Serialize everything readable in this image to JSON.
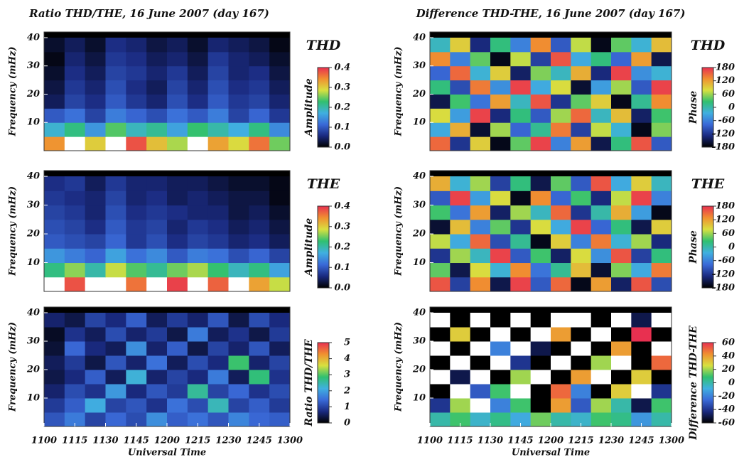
{
  "colormap": [
    "#000000",
    "#1a2a80",
    "#3a6ad8",
    "#40b0e0",
    "#30c070",
    "#d8e040",
    "#f09030",
    "#e83050"
  ],
  "chart_data": [
    {
      "type": "heatmap",
      "title": "Ratio THD/THE, 16 June 2007 (day 167)",
      "label": "THD",
      "colorbar_label": "Amplitude",
      "ylabel": "Frequency (mHz)",
      "xbins": [
        0,
        10,
        20,
        30,
        40,
        50,
        60,
        70,
        80,
        90,
        100,
        110,
        120
      ],
      "ybins": [
        0,
        5,
        10,
        15,
        20,
        25,
        30,
        35,
        40
      ],
      "xlim": [
        0,
        120
      ],
      "ylim": [
        0,
        42
      ],
      "yticks": [
        10,
        20,
        30,
        40
      ],
      "clim": [
        0,
        0.4
      ],
      "cticks": [
        {
          "value": 0,
          "label": "0.0"
        },
        0.1,
        0.2,
        0.3,
        0.4
      ],
      "z": [
        [
          0.34,
          0.41,
          0.3,
          0.42,
          0.38,
          0.31,
          0.27,
          0.43,
          0.33,
          0.29,
          0.36,
          0.25
        ],
        [
          0.18,
          0.22,
          0.15,
          0.24,
          0.19,
          0.21,
          0.16,
          0.23,
          0.2,
          0.17,
          0.22,
          0.14
        ],
        [
          0.1,
          0.12,
          0.08,
          0.13,
          0.11,
          0.09,
          0.12,
          0.1,
          0.13,
          0.08,
          0.11,
          0.07
        ],
        [
          0.04,
          0.08,
          0.06,
          0.1,
          0.07,
          0.05,
          0.09,
          0.06,
          0.1,
          0.07,
          0.08,
          0.05
        ],
        [
          0.03,
          0.07,
          0.05,
          0.09,
          0.06,
          0.04,
          0.08,
          0.05,
          0.09,
          0.06,
          0.07,
          0.04
        ],
        [
          0.02,
          0.06,
          0.04,
          0.08,
          0.07,
          0.05,
          0.07,
          0.04,
          0.08,
          0.05,
          0.06,
          0.03
        ],
        [
          0.01,
          0.05,
          0.03,
          0.07,
          0.06,
          0.04,
          0.05,
          0.03,
          0.07,
          0.05,
          0.04,
          0.02
        ],
        [
          0.02,
          0.04,
          0.02,
          0.06,
          0.05,
          0.03,
          0.04,
          0.02,
          0.05,
          0.04,
          0.03,
          0.01
        ]
      ]
    },
    {
      "type": "heatmap",
      "label": "THE",
      "colorbar_label": "Amplitude",
      "ylabel": "Frequency (mHz)",
      "xbins": [
        0,
        10,
        20,
        30,
        40,
        50,
        60,
        70,
        80,
        90,
        100,
        110,
        120
      ],
      "ybins": [
        0,
        5,
        10,
        15,
        20,
        25,
        30,
        35,
        40
      ],
      "xlim": [
        0,
        120
      ],
      "ylim": [
        0,
        42
      ],
      "yticks": [
        10,
        20,
        30,
        40
      ],
      "clim": [
        0,
        0.4
      ],
      "cticks": [
        {
          "value": 0,
          "label": "0.0"
        },
        0.1,
        0.2,
        0.3,
        0.4
      ],
      "z": [
        [
          0.45,
          0.38,
          0.44,
          0.41,
          0.36,
          0.43,
          0.39,
          0.46,
          0.37,
          0.42,
          0.33,
          0.28
        ],
        [
          0.22,
          0.26,
          0.2,
          0.28,
          0.24,
          0.21,
          0.25,
          0.27,
          0.23,
          0.19,
          0.22,
          0.16
        ],
        [
          0.15,
          0.13,
          0.11,
          0.16,
          0.12,
          0.14,
          0.1,
          0.13,
          0.12,
          0.09,
          0.11,
          0.08
        ],
        [
          0.1,
          0.09,
          0.08,
          0.11,
          0.07,
          0.09,
          0.06,
          0.08,
          0.07,
          0.05,
          0.06,
          0.04
        ],
        [
          0.09,
          0.08,
          0.06,
          0.1,
          0.07,
          0.08,
          0.05,
          0.07,
          0.06,
          0.04,
          0.05,
          0.03
        ],
        [
          0.08,
          0.07,
          0.05,
          0.09,
          0.06,
          0.07,
          0.06,
          0.05,
          0.05,
          0.03,
          0.04,
          0.02
        ],
        [
          0.07,
          0.06,
          0.05,
          0.08,
          0.05,
          0.06,
          0.04,
          0.05,
          0.04,
          0.03,
          0.03,
          0.01
        ],
        [
          0.06,
          0.07,
          0.04,
          0.07,
          0.05,
          0.05,
          0.04,
          0.04,
          0.03,
          0.02,
          0.02,
          0.01
        ]
      ]
    },
    {
      "type": "heatmap",
      "colorbar_label": "Ratio THD/THE",
      "ylabel": "Frequency (mHz)",
      "xlabel": "Universal Time",
      "xbins": [
        0,
        10,
        20,
        30,
        40,
        50,
        60,
        70,
        80,
        90,
        100,
        110,
        120
      ],
      "ybins": [
        0,
        5,
        10,
        15,
        20,
        25,
        30,
        35,
        40
      ],
      "xlim": [
        0,
        120
      ],
      "ylim": [
        0,
        42
      ],
      "yticks": [
        10,
        20,
        30,
        40
      ],
      "xticks": [
        {
          "value": 0,
          "label": "1100"
        },
        {
          "value": 15,
          "label": "1115"
        },
        {
          "value": 30,
          "label": "1130"
        },
        {
          "value": 45,
          "label": "1145"
        },
        {
          "value": 60,
          "label": "1200"
        },
        {
          "value": 75,
          "label": "1215"
        },
        {
          "value": 90,
          "label": "1230"
        },
        {
          "value": 105,
          "label": "1245"
        },
        {
          "value": 120,
          "label": "1300"
        }
      ],
      "clim": [
        0,
        5
      ],
      "cticks": [
        0,
        1,
        2,
        3,
        4,
        5
      ],
      "z": [
        [
          1.2,
          1.6,
          1.0,
          1.4,
          1.1,
          1.8,
          1.3,
          1.5,
          1.2,
          1.7,
          1.4,
          1.3
        ],
        [
          0.9,
          1.3,
          2.1,
          1.0,
          1.2,
          0.8,
          1.5,
          1.1,
          2.4,
          1.0,
          1.3,
          0.9
        ],
        [
          0.6,
          1.1,
          0.8,
          1.9,
          0.7,
          1.2,
          0.9,
          2.6,
          1.0,
          1.4,
          0.8,
          1.1
        ],
        [
          0.4,
          0.7,
          1.3,
          0.5,
          2.2,
          0.6,
          1.0,
          0.7,
          1.6,
          0.5,
          2.8,
          0.8
        ],
        [
          0.5,
          0.9,
          0.4,
          1.2,
          0.6,
          1.5,
          0.5,
          1.1,
          0.7,
          2.9,
          0.6,
          1.0
        ],
        [
          0.3,
          1.4,
          0.7,
          0.5,
          1.8,
          0.6,
          1.3,
          0.4,
          1.0,
          0.6,
          1.2,
          0.5
        ],
        [
          0.2,
          0.8,
          0.5,
          1.1,
          0.6,
          0.9,
          0.4,
          1.6,
          0.5,
          0.8,
          0.4,
          0.9
        ],
        [
          0.6,
          0.4,
          1.0,
          0.7,
          1.3,
          0.5,
          0.9,
          0.6,
          1.2,
          0.4,
          1.1,
          0.7
        ]
      ]
    },
    {
      "type": "heatmap",
      "title": "Difference THD-THE, 16 June 2007 (day 167)",
      "label": "THD",
      "colorbar_label": "Phase",
      "ylabel": "Frequency (mHz)",
      "xbins": [
        0,
        10,
        20,
        30,
        40,
        50,
        60,
        70,
        80,
        90,
        100,
        110,
        120
      ],
      "ybins": [
        0,
        5,
        10,
        15,
        20,
        25,
        30,
        35,
        40
      ],
      "xlim": [
        0,
        120
      ],
      "ylim": [
        0,
        42
      ],
      "yticks": [
        10,
        20,
        30,
        40
      ],
      "clim": [
        -180,
        180
      ],
      "cticks": [
        180,
        120,
        60,
        0,
        -60,
        -120,
        -180
      ],
      "z": [
        [
          150,
          -120,
          90,
          -170,
          40,
          170,
          -60,
          120,
          -150,
          20,
          160,
          -90
        ],
        [
          -30,
          110,
          -160,
          60,
          -80,
          10,
          140,
          -110,
          70,
          -20,
          -170,
          50
        ],
        [
          80,
          -40,
          170,
          -130,
          20,
          -90,
          60,
          150,
          -10,
          100,
          -140,
          30
        ],
        [
          -150,
          30,
          -70,
          120,
          -10,
          160,
          -120,
          40,
          90,
          -170,
          10,
          130
        ],
        [
          20,
          -100,
          140,
          -50,
          170,
          -30,
          80,
          -160,
          -40,
          60,
          -90,
          170
        ],
        [
          -80,
          150,
          -20,
          90,
          -140,
          50,
          -10,
          110,
          -130,
          170,
          -50,
          -20
        ],
        [
          130,
          -60,
          40,
          -170,
          70,
          -110,
          160,
          -30,
          20,
          -80,
          120,
          -150
        ],
        [
          -10,
          90,
          -130,
          20,
          -60,
          130,
          -90,
          70,
          -170,
          40,
          -20,
          100
        ]
      ]
    },
    {
      "type": "heatmap",
      "label": "THE",
      "colorbar_label": "Phase",
      "ylabel": "Frequency (mHz)",
      "xbins": [
        0,
        10,
        20,
        30,
        40,
        50,
        60,
        70,
        80,
        90,
        100,
        110,
        120
      ],
      "ybins": [
        0,
        5,
        10,
        15,
        20,
        25,
        30,
        35,
        40
      ],
      "xlim": [
        0,
        120
      ],
      "ylim": [
        0,
        42
      ],
      "yticks": [
        10,
        20,
        30,
        40
      ],
      "clim": [
        -180,
        180
      ],
      "cticks": [
        180,
        120,
        60,
        0,
        -60,
        -120,
        -180
      ],
      "z": [
        [
          160,
          -110,
          130,
          -150,
          170,
          -90,
          150,
          -170,
          120,
          -140,
          160,
          -100
        ],
        [
          40,
          -150,
          80,
          -20,
          130,
          -70,
          10,
          100,
          -160,
          50,
          -30,
          140
        ],
        [
          -120,
          60,
          -10,
          170,
          -90,
          30,
          -140,
          80,
          -50,
          160,
          -110,
          20
        ],
        [
          70,
          -30,
          150,
          -100,
          10,
          -170,
          90,
          -60,
          140,
          -20,
          60,
          -130
        ],
        [
          -160,
          100,
          -60,
          40,
          -120,
          80,
          -30,
          170,
          -80,
          20,
          -150,
          90
        ],
        [
          30,
          -70,
          120,
          -140,
          60,
          -10,
          150,
          -120,
          0,
          110,
          -40,
          -170
        ],
        [
          -90,
          170,
          -40,
          80,
          -170,
          130,
          -80,
          30,
          -130,
          70,
          170,
          -60
        ],
        [
          110,
          -20,
          60,
          -110,
          20,
          -150,
          40,
          -90,
          160,
          -30,
          90,
          -10
        ]
      ]
    },
    {
      "type": "heatmap",
      "colorbar_label": "Difference THD-THE",
      "ylabel": "Frequency (mHz)",
      "xlabel": "Universal Time",
      "xbins": [
        0,
        10,
        20,
        30,
        40,
        50,
        60,
        70,
        80,
        90,
        100,
        110,
        120
      ],
      "ybins": [
        0,
        5,
        10,
        15,
        20,
        25,
        30,
        35,
        40
      ],
      "xlim": [
        0,
        120
      ],
      "ylim": [
        0,
        42
      ],
      "yticks": [
        10,
        20,
        30,
        40
      ],
      "xticks": [
        {
          "value": 0,
          "label": "1100"
        },
        {
          "value": 15,
          "label": "1115"
        },
        {
          "value": 30,
          "label": "1130"
        },
        {
          "value": 45,
          "label": "1145"
        },
        {
          "value": 60,
          "label": "1200"
        },
        {
          "value": 75,
          "label": "1215"
        },
        {
          "value": 90,
          "label": "1230"
        },
        {
          "value": 105,
          "label": "1245"
        },
        {
          "value": 120,
          "label": "1300"
        }
      ],
      "clim": [
        -60,
        60
      ],
      "cticks": [
        60,
        40,
        20,
        0,
        -20,
        -40,
        -60
      ],
      "z": [
        [
          0,
          10,
          -5,
          5,
          -10,
          15,
          0,
          -5,
          10,
          5,
          -15,
          0
        ],
        [
          -40,
          20,
          80,
          -20,
          10,
          -60,
          40,
          -30,
          20,
          0,
          -50,
          10
        ],
        [
          -70,
          80,
          -30,
          10,
          90,
          -70,
          50,
          -20,
          -80,
          30,
          80,
          -40
        ],
        [
          80,
          -50,
          90,
          -70,
          20,
          80,
          -90,
          40,
          85,
          -60,
          30,
          -80
        ],
        [
          -80,
          70,
          -60,
          90,
          -40,
          -80,
          70,
          -90,
          20,
          90,
          -70,
          50
        ],
        [
          90,
          -70,
          80,
          -20,
          85,
          -50,
          -80,
          90,
          -60,
          40,
          -90,
          80
        ],
        [
          -90,
          30,
          -80,
          90,
          -70,
          80,
          40,
          -70,
          90,
          -80,
          60,
          -70
        ],
        [
          85,
          -80,
          90,
          -60,
          80,
          -90,
          70,
          80,
          -70,
          90,
          -50,
          90
        ]
      ]
    }
  ]
}
